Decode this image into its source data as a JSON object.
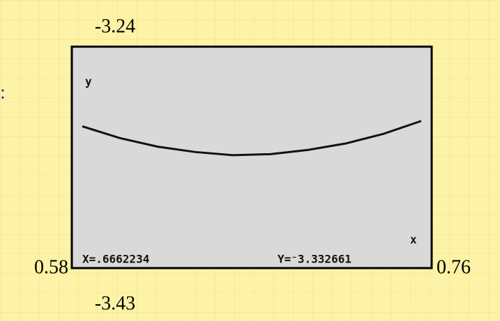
{
  "chart_data": {
    "type": "line",
    "x_label": "x",
    "y_label": "y",
    "x": [
      0.58,
      0.6,
      0.62,
      0.64,
      0.66,
      0.68,
      0.7,
      0.72,
      0.74,
      0.76
    ],
    "series": [
      {
        "color": "#111111",
        "values": [
          -3.306,
          -3.317,
          -3.325,
          -3.33,
          -3.333,
          -3.332,
          -3.328,
          -3.322,
          -3.313,
          -3.301
        ]
      }
    ],
    "xlim": [
      0.58,
      0.76
    ],
    "ylim": [
      -3.43,
      -3.24
    ],
    "xticks": [
      0.58,
      0.76
    ],
    "yticks": [
      -3.43,
      -3.24
    ],
    "annotations": [
      "X=.6662234",
      "Y=⁻3.332661",
      ":"
    ]
  }
}
